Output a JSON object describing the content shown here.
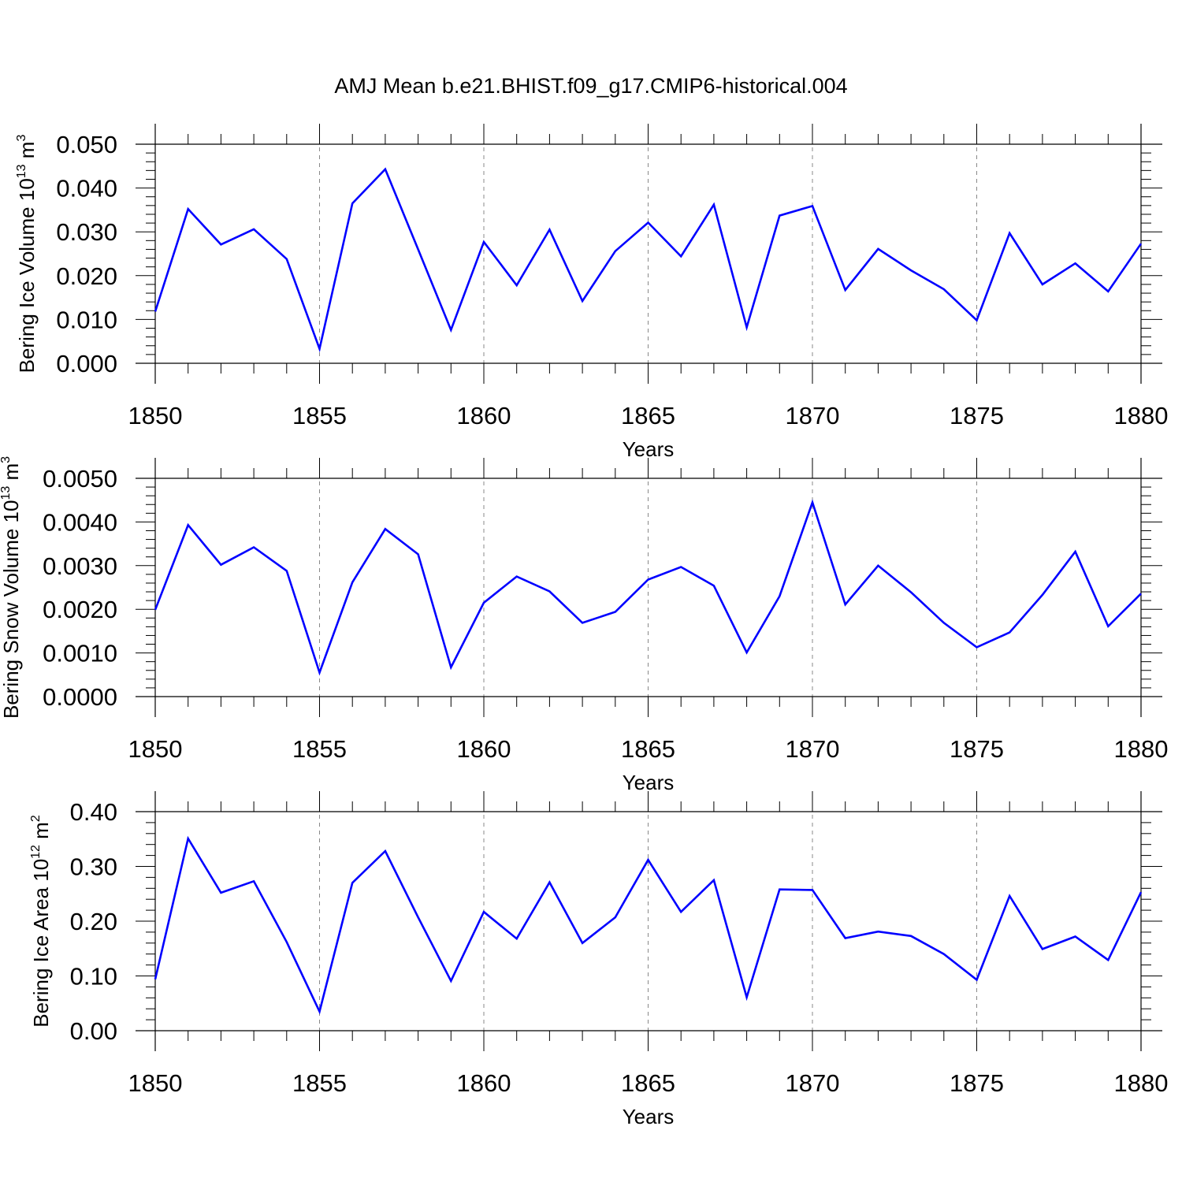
{
  "figure": {
    "title": "AMJ Mean b.e21.BHIST.f09_g17.CMIP6-historical.004",
    "line_color": "#0000ff",
    "grid_color": "#888888"
  },
  "chart_data": [
    {
      "type": "line",
      "ylabel_main": "Bering Ice Volume 10",
      "ylabel_exp": "13",
      "ylabel_unit": " m",
      "ylabel_unit_exp": "3",
      "xlabel": "Years",
      "xlim": [
        1850,
        1880
      ],
      "ylim": [
        0.0,
        0.05
      ],
      "yticks": [
        0.0,
        0.01,
        0.02,
        0.03,
        0.04,
        0.05
      ],
      "ytick_labels": [
        "0.000",
        "0.010",
        "0.020",
        "0.030",
        "0.040",
        "0.050"
      ],
      "xticks": [
        1850,
        1855,
        1860,
        1865,
        1870,
        1875,
        1880
      ],
      "xtick_labels": [
        "1850",
        "1855",
        "1860",
        "1865",
        "1870",
        "1875",
        "1880"
      ],
      "grid": "vertical-dashed",
      "x": [
        1850,
        1851,
        1852,
        1853,
        1854,
        1855,
        1856,
        1857,
        1858,
        1859,
        1860,
        1861,
        1862,
        1863,
        1864,
        1865,
        1866,
        1867,
        1868,
        1869,
        1870,
        1871,
        1872,
        1873,
        1874,
        1875,
        1876,
        1877,
        1878,
        1879,
        1880
      ],
      "values": [
        0.0118,
        0.0352,
        0.0271,
        0.0306,
        0.0238,
        0.0033,
        0.0365,
        0.0443,
        0.026,
        0.0076,
        0.0277,
        0.0178,
        0.0305,
        0.0142,
        0.0256,
        0.0321,
        0.0244,
        0.0362,
        0.0082,
        0.0337,
        0.0359,
        0.0167,
        0.0261,
        0.0212,
        0.0169,
        0.0098,
        0.0297,
        0.018,
        0.0228,
        0.0164,
        0.0273
      ]
    },
    {
      "type": "line",
      "ylabel_main": "Bering Snow Volume 10",
      "ylabel_exp": "13",
      "ylabel_unit": " m",
      "ylabel_unit_exp": "3",
      "xlabel": "Years",
      "xlim": [
        1850,
        1880
      ],
      "ylim": [
        0.0,
        0.005
      ],
      "yticks": [
        0.0,
        0.001,
        0.002,
        0.003,
        0.004,
        0.005
      ],
      "ytick_labels": [
        "0.0000",
        "0.0010",
        "0.0020",
        "0.0030",
        "0.0040",
        "0.0050"
      ],
      "xticks": [
        1850,
        1855,
        1860,
        1865,
        1870,
        1875,
        1880
      ],
      "xtick_labels": [
        "1850",
        "1855",
        "1860",
        "1865",
        "1870",
        "1875",
        "1880"
      ],
      "grid": "vertical-dashed",
      "x": [
        1850,
        1851,
        1852,
        1853,
        1854,
        1855,
        1856,
        1857,
        1858,
        1859,
        1860,
        1861,
        1862,
        1863,
        1864,
        1865,
        1866,
        1867,
        1868,
        1869,
        1870,
        1871,
        1872,
        1873,
        1874,
        1875,
        1876,
        1877,
        1878,
        1879,
        1880
      ],
      "values": [
        0.00199,
        0.00393,
        0.00302,
        0.00342,
        0.00288,
        0.00055,
        0.00262,
        0.00384,
        0.00326,
        0.00067,
        0.00215,
        0.00275,
        0.00241,
        0.00169,
        0.00194,
        0.00268,
        0.00297,
        0.00254,
        0.00101,
        0.0023,
        0.00445,
        0.00211,
        0.003,
        0.00239,
        0.00169,
        0.00113,
        0.00147,
        0.00233,
        0.00332,
        0.00161,
        0.00236
      ]
    },
    {
      "type": "line",
      "ylabel_main": "Bering Ice Area 10",
      "ylabel_exp": "12",
      "ylabel_unit": " m",
      "ylabel_unit_exp": "2",
      "xlabel": "Years",
      "xlim": [
        1850,
        1880
      ],
      "ylim": [
        0.0,
        0.4
      ],
      "yticks": [
        0.0,
        0.1,
        0.2,
        0.3,
        0.4
      ],
      "ytick_labels": [
        "0.00",
        "0.10",
        "0.20",
        "0.30",
        "0.40"
      ],
      "xticks": [
        1850,
        1855,
        1860,
        1865,
        1870,
        1875,
        1880
      ],
      "xtick_labels": [
        "1850",
        "1855",
        "1860",
        "1865",
        "1870",
        "1875",
        "1880"
      ],
      "grid": "vertical-dashed",
      "x": [
        1850,
        1851,
        1852,
        1853,
        1854,
        1855,
        1856,
        1857,
        1858,
        1859,
        1860,
        1861,
        1862,
        1863,
        1864,
        1865,
        1866,
        1867,
        1868,
        1869,
        1870,
        1871,
        1872,
        1873,
        1874,
        1875,
        1876,
        1877,
        1878,
        1879,
        1880
      ],
      "values": [
        0.094,
        0.351,
        0.252,
        0.273,
        0.162,
        0.035,
        0.27,
        0.328,
        0.207,
        0.091,
        0.217,
        0.168,
        0.271,
        0.16,
        0.207,
        0.312,
        0.217,
        0.275,
        0.061,
        0.258,
        0.257,
        0.169,
        0.181,
        0.173,
        0.14,
        0.093,
        0.246,
        0.149,
        0.172,
        0.129,
        0.253
      ]
    }
  ]
}
